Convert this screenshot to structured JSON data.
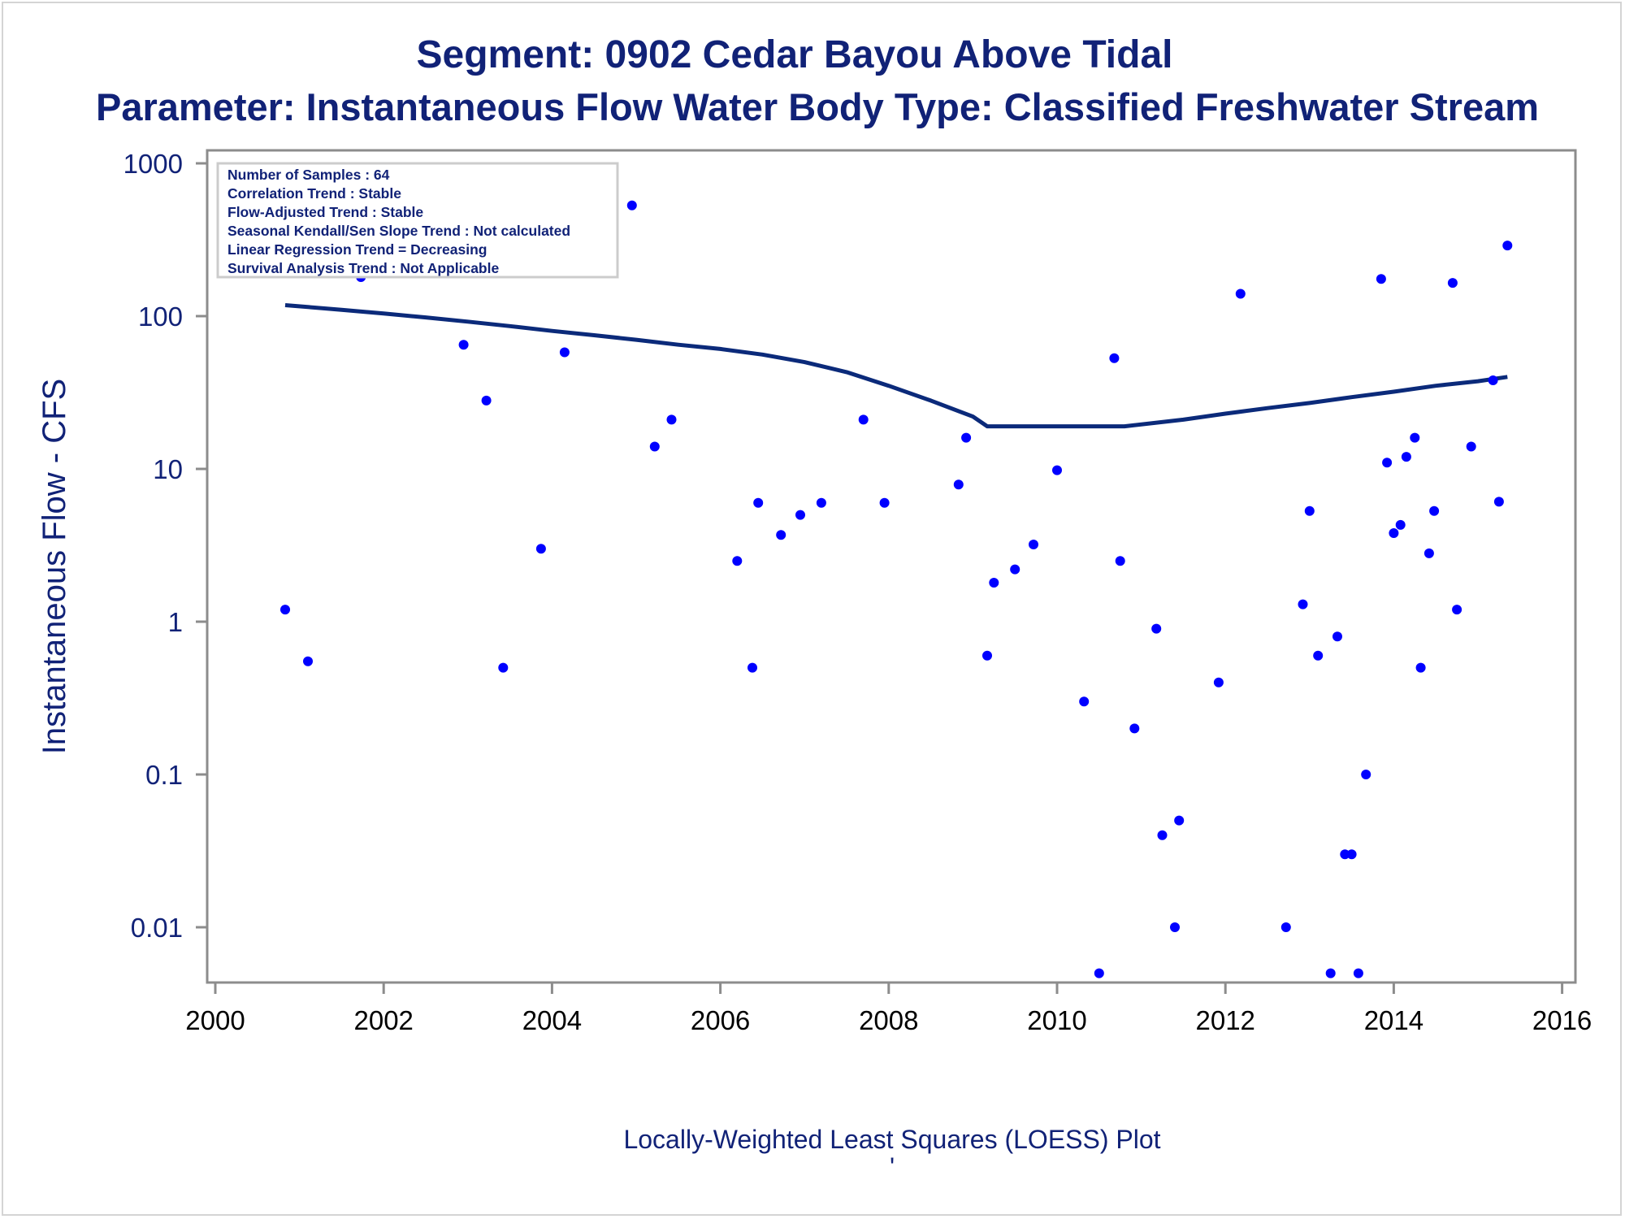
{
  "title": "Segment: 0902  Cedar Bayou Above Tidal",
  "subtitle": "Parameter: Instantaneous Flow   Water Body Type: Classified Freshwater Stream",
  "footnote": "Locally-Weighted Least Squares (LOESS) Plot",
  "footnote_mark": "'",
  "colors": {
    "text": "#112277",
    "points": "#0000ff",
    "loess_line": "#0b2a7a",
    "axis": "#8c8c8c"
  },
  "stats_box": {
    "lines": [
      "Number of Samples : 64",
      "Correlation Trend : Stable",
      "Flow-Adjusted Trend : Stable",
      "Seasonal Kendall/Sen Slope Trend : Not calculated",
      "Linear Regression Trend = Decreasing",
      "Survival Analysis Trend : Not Applicable"
    ]
  },
  "chart_data": {
    "type": "scatter",
    "ylabel": "Instantaneous Flow - CFS",
    "xlabel": "",
    "y_scale": "log",
    "ylim": [
      0.0044,
      1000
    ],
    "xlim": [
      1999.9,
      2016.15
    ],
    "x_ticks": [
      "2000",
      "2002",
      "2004",
      "2006",
      "2008",
      "2010",
      "2012",
      "2014",
      "2016"
    ],
    "y_ticks": [
      "1000",
      "100",
      "10",
      "1",
      "0.1",
      "0.01"
    ],
    "grid": false,
    "points": [
      [
        2000.83,
        1.2
      ],
      [
        2001.1,
        0.55
      ],
      [
        2001.2,
        200
      ],
      [
        2001.73,
        180
      ],
      [
        2002.95,
        65
      ],
      [
        2003.22,
        28
      ],
      [
        2003.42,
        0.5
      ],
      [
        2003.68,
        340
      ],
      [
        2003.87,
        3
      ],
      [
        2004.15,
        58
      ],
      [
        2004.95,
        530
      ],
      [
        2005.22,
        14
      ],
      [
        2005.42,
        21
      ],
      [
        2006.2,
        2.5
      ],
      [
        2006.38,
        0.5
      ],
      [
        2006.45,
        6
      ],
      [
        2006.72,
        3.7
      ],
      [
        2006.95,
        5
      ],
      [
        2007.2,
        6
      ],
      [
        2007.7,
        21
      ],
      [
        2007.95,
        6
      ],
      [
        2008.83,
        7.9
      ],
      [
        2008.92,
        16
      ],
      [
        2009.17,
        0.6
      ],
      [
        2009.25,
        1.8
      ],
      [
        2009.5,
        2.2
      ],
      [
        2009.72,
        3.2
      ],
      [
        2010.0,
        9.8
      ],
      [
        2010.32,
        0.3
      ],
      [
        2010.5,
        0.005
      ],
      [
        2010.68,
        53
      ],
      [
        2010.75,
        2.5
      ],
      [
        2010.92,
        0.2
      ],
      [
        2011.18,
        0.9
      ],
      [
        2011.25,
        0.04
      ],
      [
        2011.4,
        0.01
      ],
      [
        2011.45,
        0.05
      ],
      [
        2011.92,
        0.4
      ],
      [
        2012.18,
        140
      ],
      [
        2012.72,
        0.01
      ],
      [
        2012.92,
        1.3
      ],
      [
        2013.0,
        5.3
      ],
      [
        2013.1,
        0.6
      ],
      [
        2013.25,
        0.005
      ],
      [
        2013.33,
        0.8
      ],
      [
        2013.42,
        0.03
      ],
      [
        2013.5,
        0.03
      ],
      [
        2013.58,
        0.005
      ],
      [
        2013.67,
        0.1
      ],
      [
        2013.85,
        175
      ],
      [
        2013.92,
        11
      ],
      [
        2014.0,
        3.8
      ],
      [
        2014.08,
        4.3
      ],
      [
        2014.15,
        12
      ],
      [
        2014.25,
        16
      ],
      [
        2014.32,
        0.5
      ],
      [
        2014.42,
        2.8
      ],
      [
        2014.48,
        5.3
      ],
      [
        2014.7,
        165
      ],
      [
        2014.75,
        1.2
      ],
      [
        2014.92,
        14
      ],
      [
        2015.18,
        38
      ],
      [
        2015.25,
        6.1
      ],
      [
        2015.35,
        290
      ]
    ],
    "loess": [
      [
        2000.83,
        118
      ],
      [
        2001.5,
        110
      ],
      [
        2002.0,
        104
      ],
      [
        2002.5,
        98
      ],
      [
        2003.0,
        92
      ],
      [
        2003.5,
        86
      ],
      [
        2004.0,
        80
      ],
      [
        2004.5,
        75
      ],
      [
        2005.0,
        70
      ],
      [
        2005.5,
        65
      ],
      [
        2006.0,
        61
      ],
      [
        2006.5,
        56
      ],
      [
        2007.0,
        50
      ],
      [
        2007.5,
        43
      ],
      [
        2008.0,
        35
      ],
      [
        2008.5,
        28
      ],
      [
        2009.0,
        22
      ],
      [
        2009.17,
        19
      ],
      [
        2009.5,
        19
      ],
      [
        2010.0,
        19
      ],
      [
        2010.5,
        19
      ],
      [
        2010.8,
        19
      ],
      [
        2011.5,
        21
      ],
      [
        2012.0,
        23
      ],
      [
        2012.5,
        25
      ],
      [
        2013.0,
        27
      ],
      [
        2013.5,
        29.5
      ],
      [
        2014.0,
        32
      ],
      [
        2014.5,
        35
      ],
      [
        2015.0,
        37.5
      ],
      [
        2015.35,
        40
      ]
    ]
  }
}
